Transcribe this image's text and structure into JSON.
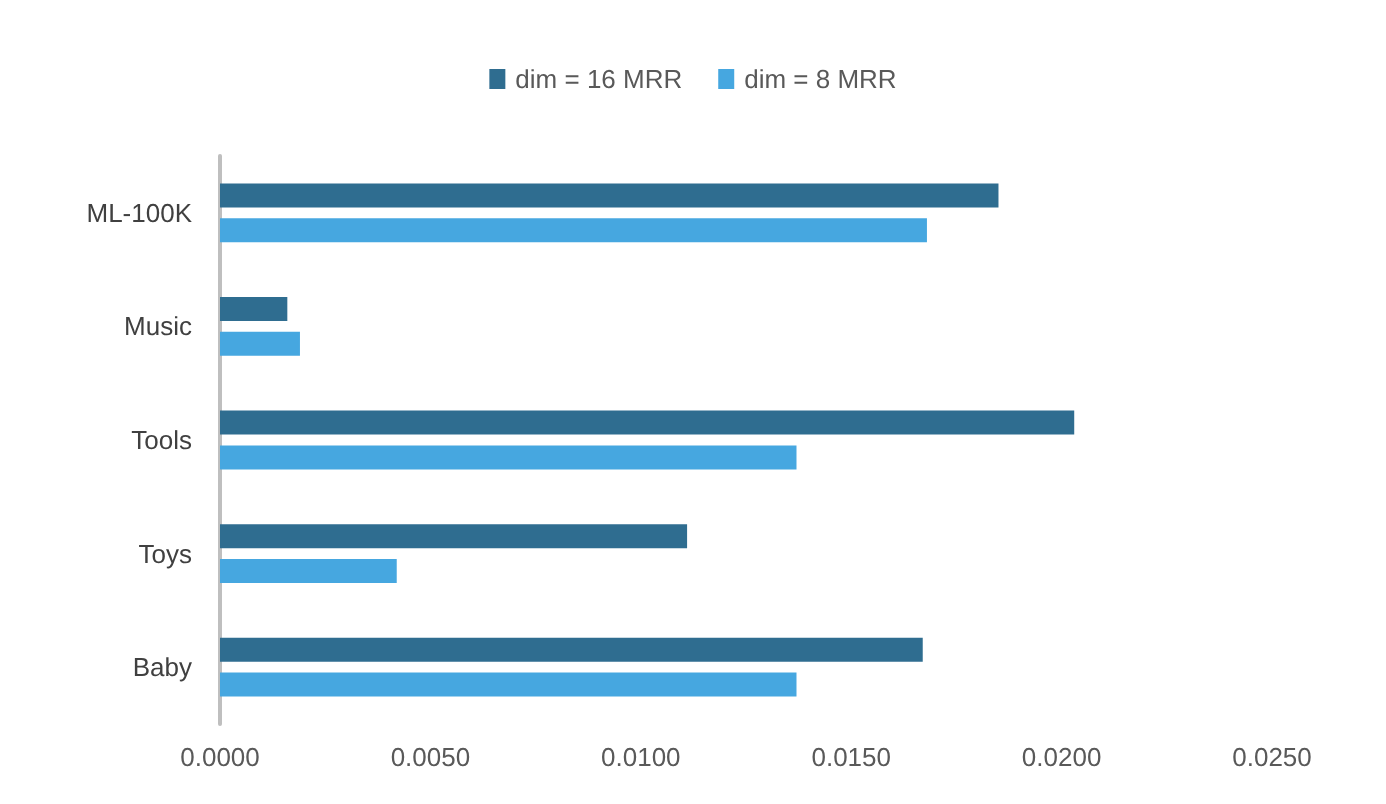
{
  "chart_data": {
    "type": "bar",
    "orientation": "horizontal",
    "categories": [
      "ML-100K",
      "Music",
      "Tools",
      "Toys",
      "Baby"
    ],
    "series": [
      {
        "name": "dim = 16 MRR",
        "color": "#2f6d90",
        "values": [
          0.0185,
          0.0016,
          0.0203,
          0.0111,
          0.0167
        ]
      },
      {
        "name": "dim = 8 MRR",
        "color": "#46a7e0",
        "values": [
          0.0168,
          0.0019,
          0.0137,
          0.0042,
          0.0137
        ]
      }
    ],
    "xlim": [
      0,
      0.025
    ],
    "xticks": [
      {
        "value": 0,
        "label": "0.0000"
      },
      {
        "value": 0.005,
        "label": "0.0050"
      },
      {
        "value": 0.01,
        "label": "0.0100"
      },
      {
        "value": 0.015,
        "label": "0.0150"
      },
      {
        "value": 0.02,
        "label": "0.0200"
      },
      {
        "value": 0.025,
        "label": "0.0250"
      }
    ],
    "grid": false,
    "legend": "top"
  }
}
